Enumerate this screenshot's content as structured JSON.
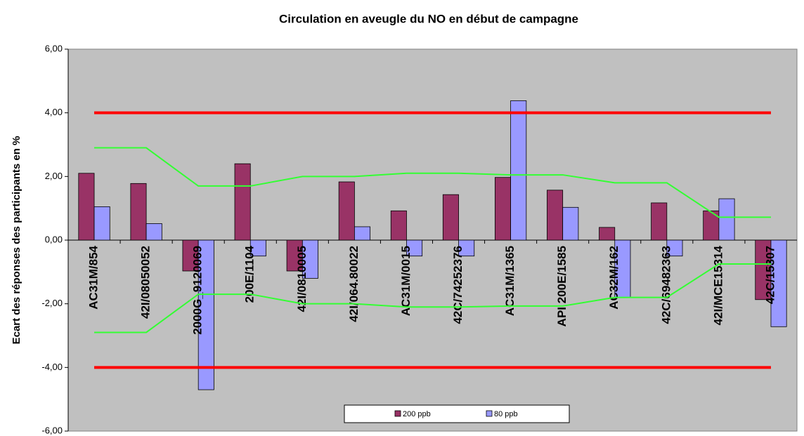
{
  "chart_data": {
    "type": "bar",
    "title": "Circulation en aveugle du NO en début de campagne",
    "y_label": "Ecart des réponses des participants en %",
    "categories": [
      "AC31M/854",
      "42I/08050052",
      "2000G_9120069",
      "200E/1104",
      "42I/0810005",
      "42I/064.80022",
      "AC31M/0015",
      "42C/74252376",
      "AC31M/1365",
      "API 200E/1585",
      "AC32M/162",
      "42C/69482363",
      "42I/MCE15314",
      "42C/15307"
    ],
    "series": [
      {
        "name": "200 ppb",
        "color": "#993366",
        "values": [
          2.1,
          1.78,
          -0.97,
          2.4,
          -0.97,
          1.83,
          0.92,
          1.43,
          1.97,
          1.57,
          0.4,
          1.17,
          0.92,
          -1.87
        ]
      },
      {
        "name": "80 ppb",
        "color": "#9999ff",
        "values": [
          1.05,
          0.52,
          -4.7,
          -0.5,
          -1.2,
          0.42,
          -0.5,
          -0.5,
          4.38,
          1.03,
          -1.8,
          -0.5,
          1.3,
          -2.72
        ]
      }
    ],
    "reference_lines": [
      {
        "color": "#ff0000",
        "values": [
          4,
          4,
          4,
          4,
          4,
          4,
          4,
          4,
          4,
          4,
          4,
          4,
          4,
          4
        ]
      },
      {
        "color": "#ff0000",
        "values": [
          -4,
          -4,
          -4,
          -4,
          -4,
          -4,
          -4,
          -4,
          -4,
          -4,
          -4,
          -4,
          -4,
          -4
        ]
      },
      {
        "color": "#33ff33",
        "values": [
          2.9,
          2.9,
          1.7,
          1.7,
          2.0,
          2.0,
          2.1,
          2.1,
          2.05,
          2.05,
          1.8,
          1.8,
          0.72,
          0.72
        ]
      },
      {
        "color": "#33ff33",
        "values": [
          -2.9,
          -2.9,
          -1.7,
          -1.7,
          -2.0,
          -2.0,
          -2.1,
          -2.1,
          -2.07,
          -2.07,
          -1.8,
          -1.8,
          -0.75,
          -0.75
        ]
      }
    ],
    "ylim": [
      -6,
      6
    ],
    "yticks": [
      {
        "value": -6,
        "label": "-6,00"
      },
      {
        "value": -4,
        "label": "-4,00"
      },
      {
        "value": -2,
        "label": "-2,00"
      },
      {
        "value": 0,
        "label": "0,00"
      },
      {
        "value": 2,
        "label": "2,00"
      },
      {
        "value": 4,
        "label": "4,00"
      },
      {
        "value": 6,
        "label": "6,00"
      }
    ],
    "plot_background": "#c0c0c0"
  }
}
